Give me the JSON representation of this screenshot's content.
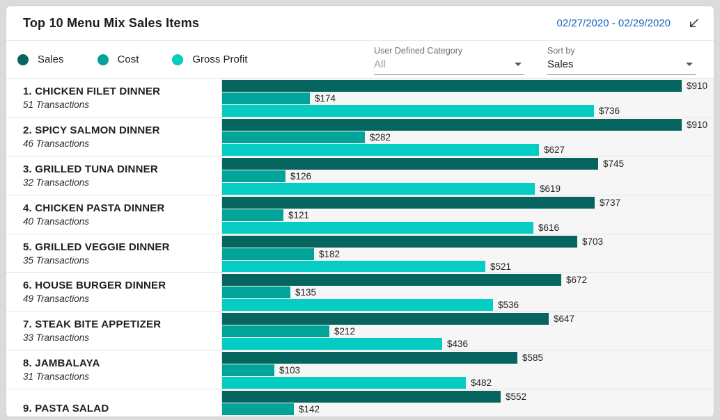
{
  "header": {
    "title": "Top 10 Menu Mix Sales Items",
    "date_range": "02/27/2020 - 02/29/2020"
  },
  "filters": {
    "category_label": "User Defined Category",
    "category_value": "All",
    "sort_label": "Sort by",
    "sort_value": "Sales"
  },
  "legend": {
    "items": [
      {
        "label": "Sales",
        "key": "sales"
      },
      {
        "label": "Cost",
        "key": "cost"
      },
      {
        "label": "Gross Profit",
        "key": "gross_profit"
      }
    ]
  },
  "colors": {
    "sales": "#06655E",
    "cost": "#02A49A",
    "gross_profit": "#06CDC4",
    "date_link": "#1565C0",
    "chart_track_bg": "#F6F6F6"
  },
  "chart_data": {
    "type": "bar",
    "orientation": "horizontal",
    "title": "Top 10 Menu Mix Sales Items",
    "series_names": [
      "Sales",
      "Cost",
      "Gross Profit"
    ],
    "value_prefix": "$",
    "xlim": [
      0,
      910
    ],
    "legend_position": "top-left",
    "grid": false,
    "items": [
      {
        "rank": 1,
        "name": "CHICKEN FILET DINNER",
        "transactions": "51 Transactions",
        "sales": 910,
        "cost": 174,
        "gross_profit": 736
      },
      {
        "rank": 2,
        "name": "SPICY SALMON DINNER",
        "transactions": "46 Transactions",
        "sales": 910,
        "cost": 282,
        "gross_profit": 627
      },
      {
        "rank": 3,
        "name": "GRILLED TUNA DINNER",
        "transactions": "32 Transactions",
        "sales": 745,
        "cost": 126,
        "gross_profit": 619
      },
      {
        "rank": 4,
        "name": "CHICKEN PASTA DINNER",
        "transactions": "40 Transactions",
        "sales": 737,
        "cost": 121,
        "gross_profit": 616
      },
      {
        "rank": 5,
        "name": "GRILLED VEGGIE DINNER",
        "transactions": "35 Transactions",
        "sales": 703,
        "cost": 182,
        "gross_profit": 521
      },
      {
        "rank": 6,
        "name": "HOUSE BURGER DINNER",
        "transactions": "49 Transactions",
        "sales": 672,
        "cost": 135,
        "gross_profit": 536
      },
      {
        "rank": 7,
        "name": "STEAK BITE APPETIZER",
        "transactions": "33 Transactions",
        "sales": 647,
        "cost": 212,
        "gross_profit": 436
      },
      {
        "rank": 8,
        "name": "JAMBALAYA",
        "transactions": "31 Transactions",
        "sales": 585,
        "cost": 103,
        "gross_profit": 482
      },
      {
        "rank": 9,
        "name": "PASTA SALAD",
        "transactions": "",
        "sales": 552,
        "cost": 142,
        "gross_profit": null
      }
    ]
  }
}
